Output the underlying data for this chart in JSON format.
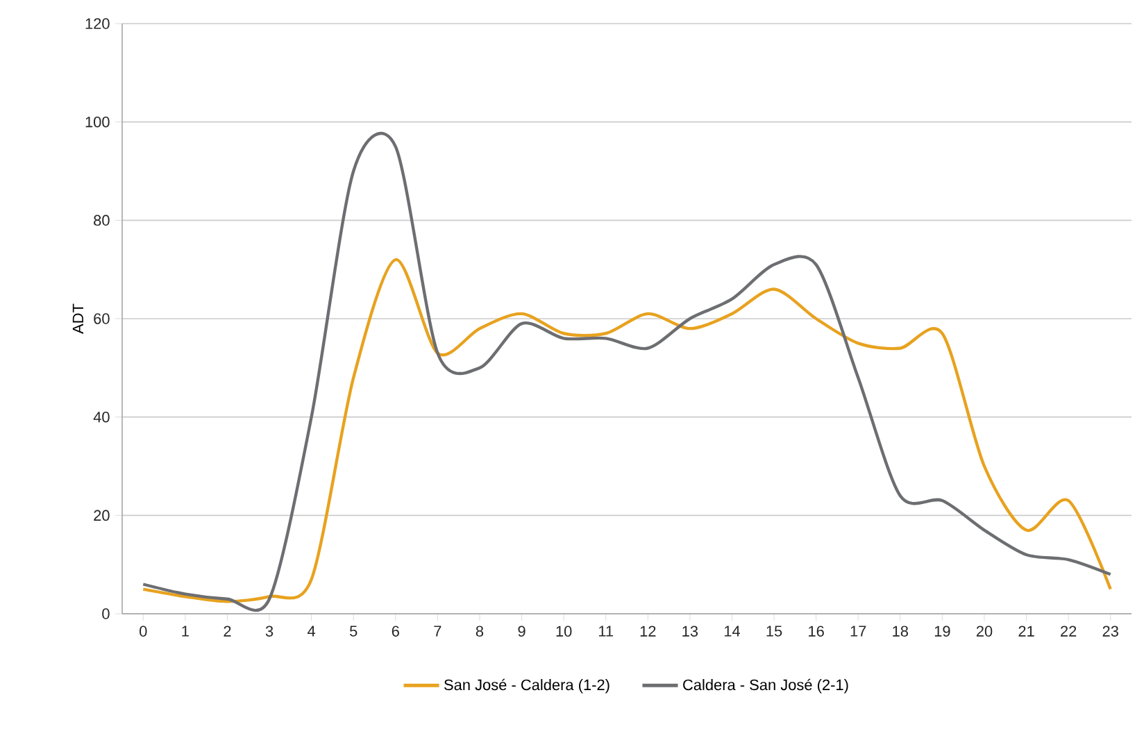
{
  "chart_data": {
    "type": "line",
    "ylabel": "ADT",
    "categories": [
      "0",
      "1",
      "2",
      "3",
      "4",
      "5",
      "6",
      "7",
      "8",
      "9",
      "10",
      "11",
      "12",
      "13",
      "14",
      "15",
      "16",
      "17",
      "18",
      "19",
      "20",
      "21",
      "22",
      "23"
    ],
    "series": [
      {
        "name": "San José - Caldera (1-2)",
        "color": "#e8a21f",
        "values": [
          5,
          3.5,
          2.5,
          3.5,
          7,
          48,
          72,
          53,
          58,
          61,
          57,
          57,
          61,
          58,
          61,
          66,
          60,
          55,
          54,
          57,
          30,
          17,
          23,
          5
        ]
      },
      {
        "name": "Caldera - San José (2-1)",
        "color": "#6d6e71",
        "values": [
          6,
          4,
          3,
          3,
          40,
          90,
          95,
          53,
          50,
          59,
          56,
          56,
          54,
          60,
          64,
          71,
          71,
          48,
          24,
          23,
          17,
          12,
          11,
          8
        ]
      }
    ],
    "ylim": [
      0,
      120
    ],
    "yticks": [
      0,
      20,
      40,
      60,
      80,
      100,
      120
    ],
    "grid": "y",
    "legend": "bottom",
    "marker": "none",
    "line_style": "solid"
  }
}
